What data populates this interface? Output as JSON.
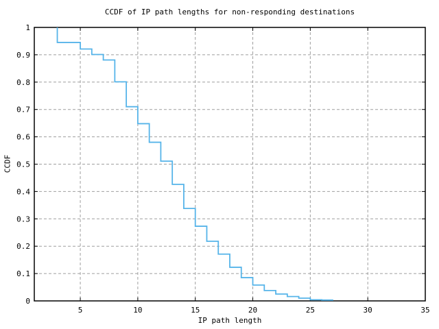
{
  "chart_data": {
    "type": "line",
    "subtype": "ccdf-step",
    "title": "CCDF of IP path lengths for non-responding destinations",
    "xlabel": "IP path length",
    "ylabel": "CCDF",
    "xlim": [
      1,
      35
    ],
    "ylim": [
      0,
      1
    ],
    "grid": true,
    "grid_style": "dashed",
    "legend": "none",
    "colors": {
      "line": "#56B4E9",
      "grid": "#9e9e9e",
      "axis": "#000000",
      "text": "#000000",
      "background": "#ffffff"
    },
    "xticks": [
      {
        "v": 5,
        "label": "5"
      },
      {
        "v": 10,
        "label": "10"
      },
      {
        "v": 15,
        "label": "15"
      },
      {
        "v": 20,
        "label": "20"
      },
      {
        "v": 25,
        "label": "25"
      },
      {
        "v": 30,
        "label": "30"
      },
      {
        "v": 35,
        "label": "35"
      }
    ],
    "yticks": [
      {
        "v": 0,
        "label": "0"
      },
      {
        "v": 0.1,
        "label": "0.1"
      },
      {
        "v": 0.2,
        "label": "0.2"
      },
      {
        "v": 0.3,
        "label": "0.3"
      },
      {
        "v": 0.4,
        "label": "0.4"
      },
      {
        "v": 0.5,
        "label": "0.5"
      },
      {
        "v": 0.6,
        "label": "0.6"
      },
      {
        "v": 0.7,
        "label": "0.7"
      },
      {
        "v": 0.8,
        "label": "0.8"
      },
      {
        "v": 0.9,
        "label": "0.9"
      },
      {
        "v": 1,
        "label": "1"
      }
    ],
    "series": [
      {
        "name": "CCDF of IP path lengths",
        "start": {
          "x": 3,
          "y": 1.0
        },
        "steps": [
          {
            "x": 3,
            "y": 0.945
          },
          {
            "x": 5,
            "y": 0.921
          },
          {
            "x": 6,
            "y": 0.901
          },
          {
            "x": 7,
            "y": 0.881
          },
          {
            "x": 8,
            "y": 0.801
          },
          {
            "x": 9,
            "y": 0.71
          },
          {
            "x": 10,
            "y": 0.648
          },
          {
            "x": 11,
            "y": 0.58
          },
          {
            "x": 12,
            "y": 0.511
          },
          {
            "x": 13,
            "y": 0.426
          },
          {
            "x": 14,
            "y": 0.338
          },
          {
            "x": 15,
            "y": 0.273
          },
          {
            "x": 16,
            "y": 0.218
          },
          {
            "x": 17,
            "y": 0.171
          },
          {
            "x": 18,
            "y": 0.123
          },
          {
            "x": 19,
            "y": 0.085
          },
          {
            "x": 20,
            "y": 0.058
          },
          {
            "x": 21,
            "y": 0.038
          },
          {
            "x": 22,
            "y": 0.025
          },
          {
            "x": 23,
            "y": 0.016
          },
          {
            "x": 24,
            "y": 0.01
          },
          {
            "x": 25,
            "y": 0.004
          },
          {
            "x": 26,
            "y": 0.003
          }
        ],
        "end_x": 27
      }
    ]
  }
}
